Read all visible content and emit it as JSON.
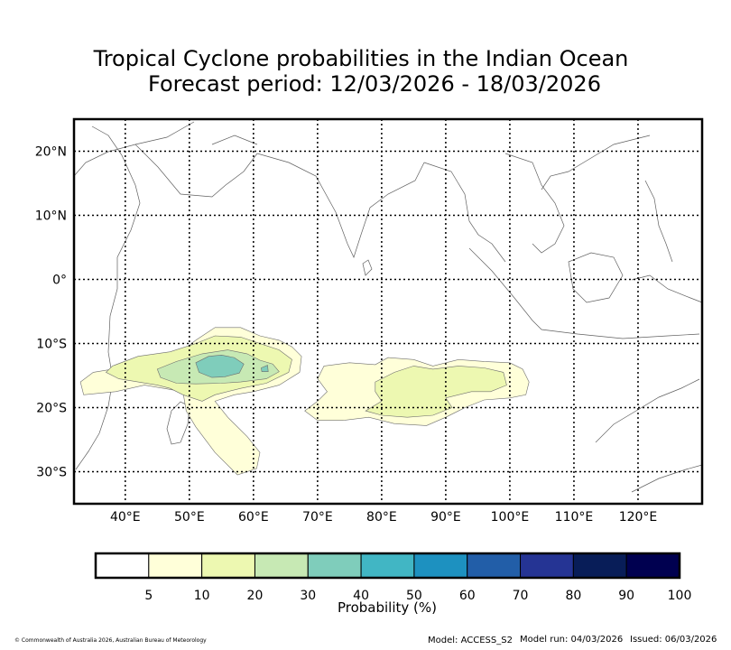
{
  "title": {
    "line1": "Tropical Cyclone probabilities in the Indian Ocean",
    "line2": "Forecast period: 12/03/2026 - 18/03/2026"
  },
  "map": {
    "lon_range": [
      32,
      130
    ],
    "lat_range": [
      -35,
      25
    ],
    "lon_ticks": [
      {
        "value": 40,
        "label": "40°E"
      },
      {
        "value": 50,
        "label": "50°E"
      },
      {
        "value": 60,
        "label": "60°E"
      },
      {
        "value": 70,
        "label": "70°E"
      },
      {
        "value": 80,
        "label": "80°E"
      },
      {
        "value": 90,
        "label": "90°E"
      },
      {
        "value": 100,
        "label": "100°E"
      },
      {
        "value": 110,
        "label": "110°E"
      },
      {
        "value": 120,
        "label": "120°E"
      }
    ],
    "lat_ticks": [
      {
        "value": 20,
        "label": "20°N"
      },
      {
        "value": 10,
        "label": "10°N"
      },
      {
        "value": 0,
        "label": "0°"
      },
      {
        "value": -10,
        "label": "10°S"
      },
      {
        "value": -20,
        "label": "20°S"
      },
      {
        "value": -30,
        "label": "30°S"
      }
    ],
    "gridlines": true
  },
  "probability_regions": [
    {
      "name": "west-5-10",
      "level": 5,
      "color": "#ffffd9",
      "lonlat": [
        [
          40,
          -15.5
        ],
        [
          43,
          -13.5
        ],
        [
          48,
          -11.8
        ],
        [
          51,
          -9.5
        ],
        [
          54,
          -7.5
        ],
        [
          58,
          -7.5
        ],
        [
          61,
          -8.8
        ],
        [
          64,
          -9.5
        ],
        [
          66,
          -10.5
        ],
        [
          67.5,
          -12
        ],
        [
          67.2,
          -14.5
        ],
        [
          64,
          -16.5
        ],
        [
          60,
          -17.5
        ],
        [
          57,
          -18
        ],
        [
          54,
          -19
        ],
        [
          56,
          -21.5
        ],
        [
          59,
          -24.5
        ],
        [
          61,
          -27
        ],
        [
          60.5,
          -29.5
        ],
        [
          57.5,
          -30.5
        ],
        [
          54,
          -27
        ],
        [
          51,
          -23
        ],
        [
          49.5,
          -20.5
        ],
        [
          49,
          -17.5
        ],
        [
          46,
          -17
        ],
        [
          43,
          -16.5
        ],
        [
          38.5,
          -17.5
        ],
        [
          33.5,
          -18
        ],
        [
          33,
          -16
        ],
        [
          35,
          -14.5
        ],
        [
          38,
          -14
        ]
      ]
    },
    {
      "name": "west-10-20",
      "level": 10,
      "color": "#edf8b1",
      "lonlat": [
        [
          38,
          -13.5
        ],
        [
          42,
          -12
        ],
        [
          47,
          -11.3
        ],
        [
          51,
          -10
        ],
        [
          54,
          -8.8
        ],
        [
          58,
          -9
        ],
        [
          61,
          -10
        ],
        [
          64,
          -11
        ],
        [
          66,
          -12.5
        ],
        [
          65.5,
          -14.5
        ],
        [
          62,
          -16.2
        ],
        [
          58,
          -17
        ],
        [
          54,
          -18
        ],
        [
          52,
          -19
        ],
        [
          49,
          -18
        ],
        [
          47,
          -17
        ],
        [
          45,
          -16.5
        ],
        [
          42,
          -16
        ],
        [
          39,
          -15.5
        ],
        [
          37,
          -14.5
        ]
      ]
    },
    {
      "name": "west-20-30",
      "level": 20,
      "color": "#c7e9b4",
      "lonlat": [
        [
          45,
          -14
        ],
        [
          48,
          -12.8
        ],
        [
          52,
          -11.6
        ],
        [
          56,
          -11
        ],
        [
          59,
          -11.6
        ],
        [
          61,
          -12.6
        ],
        [
          63,
          -13.2
        ],
        [
          64,
          -14.4
        ],
        [
          62,
          -15.5
        ],
        [
          58,
          -16
        ],
        [
          55,
          -16.2
        ],
        [
          51,
          -16.3
        ],
        [
          48,
          -16.2
        ],
        [
          45.5,
          -15.3
        ]
      ]
    },
    {
      "name": "west-30-40",
      "level": 30,
      "color": "#7fcdbb",
      "lonlat": [
        [
          51,
          -13
        ],
        [
          53,
          -12
        ],
        [
          55,
          -11.8
        ],
        [
          57,
          -12.2
        ],
        [
          58.5,
          -13.2
        ],
        [
          57.8,
          -14.6
        ],
        [
          55.5,
          -15.2
        ],
        [
          53.5,
          -15.3
        ],
        [
          51.5,
          -14.5
        ]
      ]
    },
    {
      "name": "west-30-40-b",
      "level": 30,
      "color": "#7fcdbb",
      "lonlat": [
        [
          61.2,
          -13.8
        ],
        [
          62.2,
          -13.4
        ],
        [
          62.3,
          -14.4
        ],
        [
          61.3,
          -14.4
        ]
      ]
    },
    {
      "name": "east-5-10",
      "level": 5,
      "color": "#ffffd9",
      "lonlat": [
        [
          71,
          -13.5
        ],
        [
          75,
          -13
        ],
        [
          79,
          -13.3
        ],
        [
          81,
          -12.2
        ],
        [
          85,
          -12.5
        ],
        [
          88,
          -13.5
        ],
        [
          92,
          -12.5
        ],
        [
          96,
          -12.8
        ],
        [
          100,
          -13
        ],
        [
          102,
          -14
        ],
        [
          103,
          -16
        ],
        [
          102.5,
          -18
        ],
        [
          100,
          -18.5
        ],
        [
          96,
          -18.8
        ],
        [
          93,
          -20
        ],
        [
          90,
          -21.5
        ],
        [
          87,
          -22.8
        ],
        [
          82,
          -22.5
        ],
        [
          78,
          -21.5
        ],
        [
          74,
          -22
        ],
        [
          70,
          -22
        ],
        [
          68,
          -20.5
        ],
        [
          70,
          -19
        ],
        [
          71.5,
          -17.5
        ],
        [
          70,
          -15.5
        ]
      ]
    },
    {
      "name": "east-10-20",
      "level": 10,
      "color": "#edf8b1",
      "lonlat": [
        [
          79,
          -16
        ],
        [
          82,
          -14.5
        ],
        [
          85,
          -13.5
        ],
        [
          88,
          -14
        ],
        [
          92,
          -13.5
        ],
        [
          96,
          -13.8
        ],
        [
          99,
          -14.5
        ],
        [
          99.5,
          -16.5
        ],
        [
          97,
          -17.5
        ],
        [
          94,
          -17.5
        ],
        [
          90,
          -18.5
        ],
        [
          91,
          -20
        ],
        [
          88,
          -21.2
        ],
        [
          84,
          -21.5
        ],
        [
          80,
          -21.2
        ],
        [
          77.5,
          -20.5
        ],
        [
          80,
          -19
        ],
        [
          79,
          -17.5
        ]
      ]
    }
  ],
  "colorbar": {
    "label": "Probability (%)",
    "bins": [
      {
        "color": "#ffffff"
      },
      {
        "color": "#ffffd9"
      },
      {
        "color": "#edf8b1"
      },
      {
        "color": "#c7e9b4"
      },
      {
        "color": "#7fcdbb"
      },
      {
        "color": "#41b6c4"
      },
      {
        "color": "#1d91c0"
      },
      {
        "color": "#225ea8"
      },
      {
        "color": "#253494"
      },
      {
        "color": "#081d58"
      },
      {
        "color": "#000050"
      }
    ],
    "tick_labels": [
      "5",
      "10",
      "20",
      "30",
      "40",
      "50",
      "60",
      "70",
      "80",
      "90",
      "100"
    ]
  },
  "footer": {
    "copyright": "© Commonwealth of Australia 2026, Australian Bureau of Meteorology",
    "model": "Model: ACCESS_S2",
    "model_run": "Model run: 04/03/2026",
    "issued": "Issued: 06/03/2026"
  }
}
